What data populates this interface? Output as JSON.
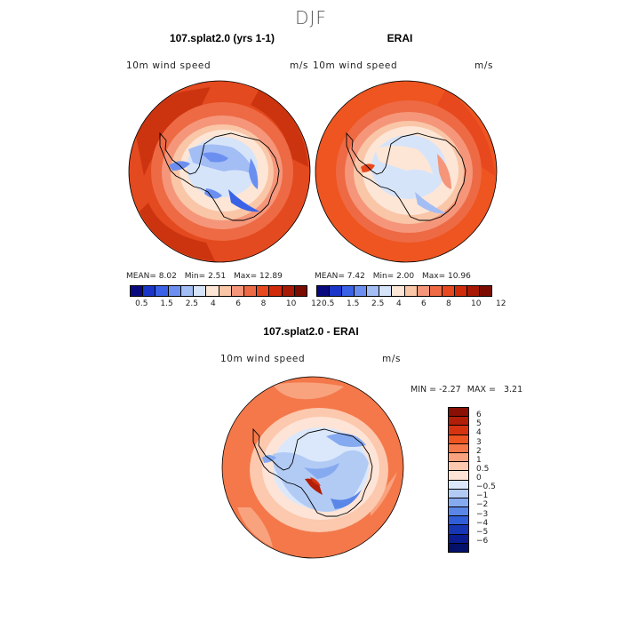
{
  "figure_title": "DJF",
  "panels": [
    {
      "title": "107.splat2.0 (yrs 1-1)",
      "variable": "10m wind speed",
      "units": "m/s",
      "stats": {
        "mean_label": "MEAN=",
        "mean": "8.02",
        "min_label": "Min=",
        "min": "2.51",
        "max_label": "Max=",
        "max": "12.89"
      }
    },
    {
      "title": "ERAI",
      "variable": "10m wind speed",
      "units": "m/s",
      "stats": {
        "mean_label": "MEAN=",
        "mean": "7.42",
        "min_label": "Min=",
        "min": "2.00",
        "max_label": "Max=",
        "max": "10.96"
      }
    },
    {
      "title": "107.splat2.0 - ERAI",
      "variable": "10m wind speed",
      "units": "m/s",
      "stats": {
        "min_label": "MIN =",
        "min": "-2.27",
        "max_label": "MAX =",
        "max": "3.21"
      }
    }
  ],
  "abs_colorbar": {
    "ticks": [
      "0.5",
      "1.5",
      "2.5",
      "4",
      "6",
      "8",
      "10",
      "12"
    ],
    "colors": [
      "#0a0a80",
      "#1a36c8",
      "#3a62e6",
      "#6b8ff0",
      "#a3bdf5",
      "#d6e4fa",
      "#fde6d6",
      "#fac6a8",
      "#f5967a",
      "#ee6a44",
      "#e8481e",
      "#d02c0c",
      "#a81a06",
      "#7a0c02"
    ]
  },
  "diff_colorbar": {
    "ticks": [
      "6",
      "5",
      "4",
      "3",
      "2",
      "1",
      "0.5",
      "0",
      "−0.5",
      "−1",
      "−2",
      "−3",
      "−4",
      "−5",
      "−6"
    ],
    "colors": [
      "#8a1006",
      "#b21e08",
      "#d63410",
      "#ee5520",
      "#f4784a",
      "#f9a27e",
      "#fcc8ae",
      "#fde4d6",
      "#dbe8fb",
      "#b2cbf5",
      "#86aaf0",
      "#5a86e8",
      "#2f5ed8",
      "#1736b4",
      "#0a1c90",
      "#04106a"
    ]
  }
}
